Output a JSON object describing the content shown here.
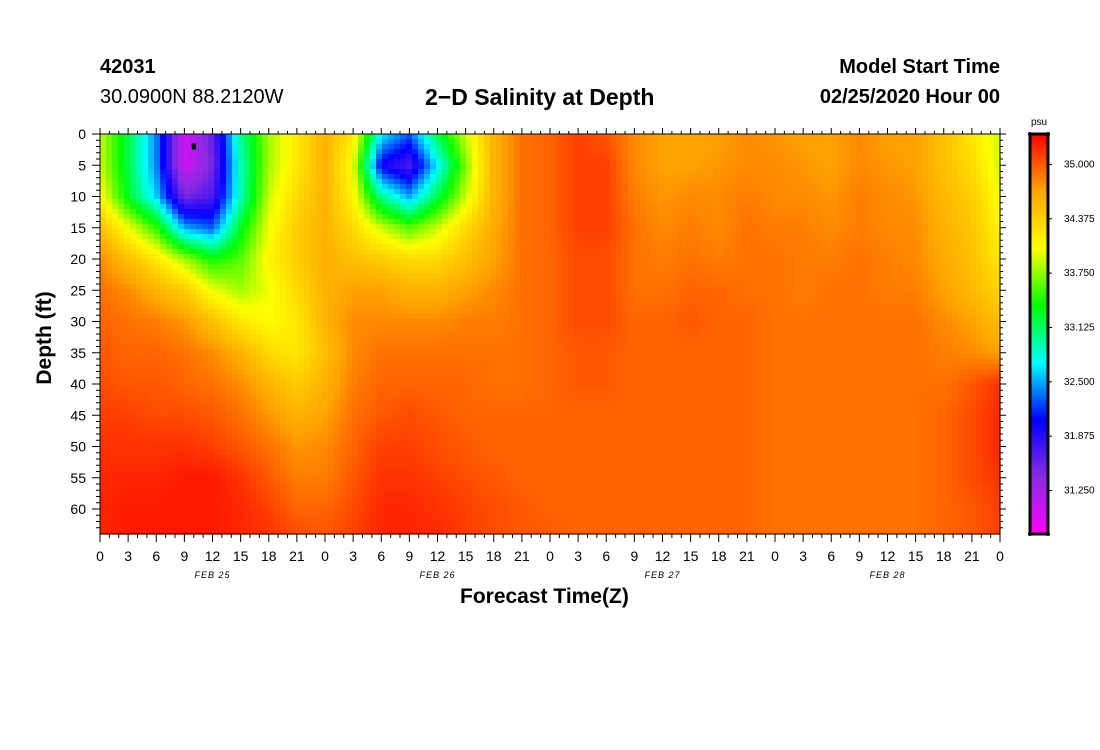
{
  "header": {
    "station_id": "42031",
    "station_location": "30.0900N 88.2120W",
    "title": "2−D Salinity at Depth",
    "start_label": "Model Start Time",
    "start_value": "02/25/2020 Hour 00"
  },
  "chart_data": {
    "type": "heatmap",
    "title": "2−D Salinity at Depth",
    "xlabel": "Forecast Time(Z)",
    "ylabel": "Depth (ft)",
    "x_unit": "hours since model start",
    "xlim": [
      0,
      96
    ],
    "ylim": [
      64,
      0
    ],
    "x_tick_labels": [
      "0",
      "3",
      "6",
      "9",
      "12",
      "15",
      "18",
      "21",
      "0",
      "3",
      "6",
      "9",
      "12",
      "15",
      "18",
      "21",
      "0",
      "3",
      "6",
      "9",
      "12",
      "15",
      "18",
      "21",
      "0",
      "3",
      "6",
      "9",
      "12",
      "15",
      "18",
      "21",
      "0"
    ],
    "date_labels": [
      {
        "label": "FEB 25",
        "hour": 12
      },
      {
        "label": "FEB 26",
        "hour": 36
      },
      {
        "label": "FEB 27",
        "hour": 60
      },
      {
        "label": "FEB 28",
        "hour": 84
      }
    ],
    "y_ticks": [
      0,
      5,
      10,
      15,
      20,
      25,
      30,
      35,
      40,
      45,
      50,
      55,
      60
    ],
    "colorbar": {
      "unit": "psu",
      "min": 30.75,
      "max": 35.35,
      "tick_values": [
        35.0,
        34.375,
        33.75,
        33.125,
        32.5,
        31.875,
        31.25
      ],
      "tick_labels": [
        "35.000",
        "34.375",
        "33.750",
        "33.125",
        "32.500",
        "31.875",
        "31.250"
      ],
      "colors": [
        "#ff00ff",
        "#8a2be2",
        "#0000ff",
        "#00ffff",
        "#00ff00",
        "#ffff00",
        "#ffa500",
        "#ff0000"
      ]
    },
    "x_hours": [
      0,
      3,
      6,
      9,
      12,
      15,
      18,
      21,
      24,
      27,
      30,
      33,
      36,
      39,
      42,
      45,
      48,
      51,
      54,
      57,
      60,
      63,
      66,
      69,
      72,
      75,
      78,
      81,
      84,
      87,
      90,
      93,
      96
    ],
    "depths_ft": [
      0,
      5,
      10,
      15,
      20,
      25,
      30,
      35,
      40,
      45,
      50,
      55,
      60,
      64
    ],
    "salinity_psu": [
      [
        33.9,
        33.2,
        32.4,
        31.0,
        31.6,
        33.0,
        33.8,
        34.2,
        34.6,
        34.2,
        32.7,
        32.3,
        33.2,
        33.9,
        34.6,
        34.9,
        34.95,
        35.1,
        35.0,
        34.8,
        34.7,
        34.7,
        34.7,
        34.8,
        34.75,
        34.7,
        34.7,
        34.8,
        34.7,
        34.7,
        34.5,
        34.2,
        33.9
      ],
      [
        33.9,
        33.2,
        32.4,
        31.0,
        31.5,
        32.9,
        33.8,
        34.2,
        34.6,
        34.0,
        32.0,
        31.7,
        32.7,
        33.7,
        34.6,
        34.9,
        34.95,
        35.1,
        35.1,
        34.8,
        34.7,
        34.7,
        34.75,
        34.8,
        34.8,
        34.75,
        34.7,
        34.8,
        34.75,
        34.7,
        34.5,
        34.3,
        33.9
      ],
      [
        34.1,
        33.3,
        32.6,
        31.5,
        31.7,
        32.9,
        33.9,
        34.3,
        34.6,
        34.1,
        33.0,
        32.5,
        33.2,
        33.9,
        34.6,
        34.9,
        34.95,
        35.1,
        35.1,
        34.85,
        34.75,
        34.8,
        34.8,
        34.85,
        34.8,
        34.8,
        34.75,
        34.85,
        34.8,
        34.75,
        34.55,
        34.4,
        34.0
      ],
      [
        34.5,
        34.0,
        33.5,
        32.5,
        32.3,
        33.3,
        34.0,
        34.4,
        34.6,
        34.3,
        33.9,
        33.6,
        33.9,
        34.3,
        34.65,
        34.9,
        34.95,
        35.1,
        35.1,
        34.9,
        34.8,
        34.85,
        34.8,
        34.9,
        34.85,
        34.85,
        34.8,
        34.85,
        34.8,
        34.8,
        34.6,
        34.45,
        34.1
      ],
      [
        34.8,
        34.5,
        34.2,
        33.8,
        33.4,
        33.6,
        34.1,
        34.4,
        34.6,
        34.5,
        34.4,
        34.3,
        34.3,
        34.5,
        34.7,
        34.9,
        34.95,
        35.05,
        35.05,
        34.9,
        34.85,
        34.9,
        34.85,
        34.9,
        34.9,
        34.85,
        34.85,
        34.9,
        34.85,
        34.8,
        34.65,
        34.5,
        34.2
      ],
      [
        34.9,
        34.8,
        34.6,
        34.4,
        34.0,
        33.8,
        34.0,
        34.3,
        34.6,
        34.7,
        34.7,
        34.6,
        34.6,
        34.7,
        34.8,
        34.9,
        34.95,
        35.05,
        35.05,
        34.9,
        34.9,
        34.95,
        34.95,
        34.9,
        34.9,
        34.85,
        34.9,
        34.9,
        34.85,
        34.85,
        34.7,
        34.55,
        34.35
      ],
      [
        34.95,
        34.9,
        34.85,
        34.75,
        34.5,
        34.2,
        34.05,
        34.2,
        34.6,
        34.8,
        34.8,
        34.8,
        34.8,
        34.85,
        34.85,
        34.9,
        34.95,
        35.05,
        35.05,
        34.95,
        34.95,
        35.0,
        34.95,
        34.95,
        34.9,
        34.9,
        34.9,
        34.9,
        34.9,
        34.9,
        34.8,
        34.7,
        34.5
      ],
      [
        35.0,
        34.95,
        34.95,
        34.9,
        34.8,
        34.6,
        34.3,
        34.2,
        34.5,
        34.8,
        34.9,
        34.9,
        34.9,
        34.9,
        34.9,
        34.9,
        34.95,
        35.0,
        35.0,
        34.95,
        34.95,
        34.95,
        34.95,
        34.95,
        34.9,
        34.9,
        34.9,
        34.9,
        34.9,
        34.9,
        34.85,
        34.8,
        34.7
      ],
      [
        35.05,
        35.0,
        35.0,
        34.95,
        34.9,
        34.8,
        34.6,
        34.4,
        34.6,
        34.85,
        34.95,
        34.95,
        34.95,
        34.95,
        34.9,
        34.9,
        34.95,
        35.0,
        35.0,
        34.95,
        34.95,
        34.95,
        34.95,
        34.95,
        34.9,
        34.9,
        34.9,
        34.9,
        34.9,
        34.9,
        34.9,
        35.0,
        35.15
      ],
      [
        35.1,
        35.1,
        35.05,
        35.05,
        35.0,
        34.9,
        34.75,
        34.6,
        34.7,
        34.9,
        35.0,
        35.05,
        35.0,
        34.95,
        34.95,
        34.95,
        34.95,
        34.95,
        34.95,
        34.95,
        34.95,
        34.95,
        34.95,
        34.95,
        34.9,
        34.9,
        34.9,
        34.9,
        34.9,
        34.9,
        34.95,
        35.05,
        35.2
      ],
      [
        35.15,
        35.15,
        35.15,
        35.15,
        35.1,
        35.0,
        34.9,
        34.75,
        34.8,
        34.95,
        35.1,
        35.1,
        35.05,
        35.0,
        34.95,
        34.95,
        34.95,
        34.95,
        34.95,
        34.95,
        34.95,
        34.95,
        34.95,
        34.95,
        34.9,
        34.9,
        34.9,
        34.9,
        34.9,
        34.9,
        34.95,
        35.05,
        35.2
      ],
      [
        35.2,
        35.2,
        35.2,
        35.25,
        35.25,
        35.15,
        35.0,
        34.85,
        34.85,
        35.0,
        35.15,
        35.15,
        35.1,
        35.05,
        35.0,
        34.95,
        34.95,
        34.95,
        34.95,
        34.95,
        34.95,
        34.95,
        34.95,
        34.95,
        34.9,
        34.9,
        34.9,
        34.9,
        34.9,
        34.9,
        34.95,
        35.05,
        35.15
      ],
      [
        35.2,
        35.25,
        35.25,
        35.25,
        35.25,
        35.2,
        35.1,
        34.95,
        34.95,
        35.05,
        35.2,
        35.2,
        35.15,
        35.1,
        35.05,
        35.0,
        34.95,
        34.95,
        34.95,
        34.95,
        34.95,
        34.95,
        34.95,
        34.95,
        34.9,
        34.9,
        34.9,
        34.9,
        34.9,
        34.9,
        34.95,
        35.0,
        35.1
      ],
      [
        35.2,
        35.25,
        35.25,
        35.25,
        35.25,
        35.2,
        35.15,
        35.05,
        35.0,
        35.1,
        35.2,
        35.2,
        35.2,
        35.1,
        35.05,
        35.0,
        35.0,
        34.95,
        34.95,
        34.95,
        34.95,
        34.95,
        34.95,
        34.95,
        34.9,
        34.9,
        34.9,
        34.9,
        34.9,
        34.9,
        34.95,
        35.0,
        35.1
      ]
    ],
    "marker": {
      "hour": 10,
      "depth_ft": 2
    }
  }
}
